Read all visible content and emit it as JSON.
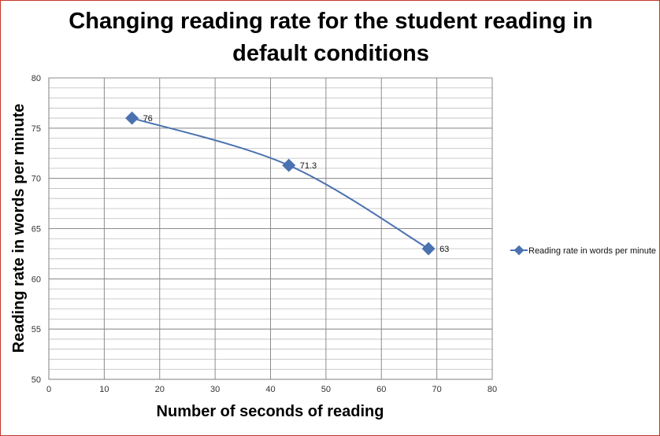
{
  "chart_data": {
    "type": "line",
    "title_line1": "Changing reading rate for the student reading in",
    "title_line2": "default conditions",
    "title_dot": ".",
    "xlabel": "Number of seconds of reading",
    "ylabel": "Reading rate in words per minute",
    "xlim": [
      0,
      80
    ],
    "ylim": [
      50,
      80
    ],
    "x_ticks": [
      0,
      10,
      20,
      30,
      40,
      50,
      60,
      70,
      80
    ],
    "y_ticks": [
      50,
      55,
      60,
      65,
      70,
      75,
      80
    ],
    "grid": true,
    "legend_position": "right",
    "series": [
      {
        "name": "Reading rate in words per minute",
        "color": "#4a72b0",
        "marker": "diamond",
        "smooth": true,
        "points": [
          {
            "x": 15,
            "y": 76,
            "label": "76"
          },
          {
            "x": 43.3,
            "y": 71.3,
            "label": "71.3"
          },
          {
            "x": 68.5,
            "y": 63,
            "label": "63"
          }
        ]
      }
    ]
  }
}
